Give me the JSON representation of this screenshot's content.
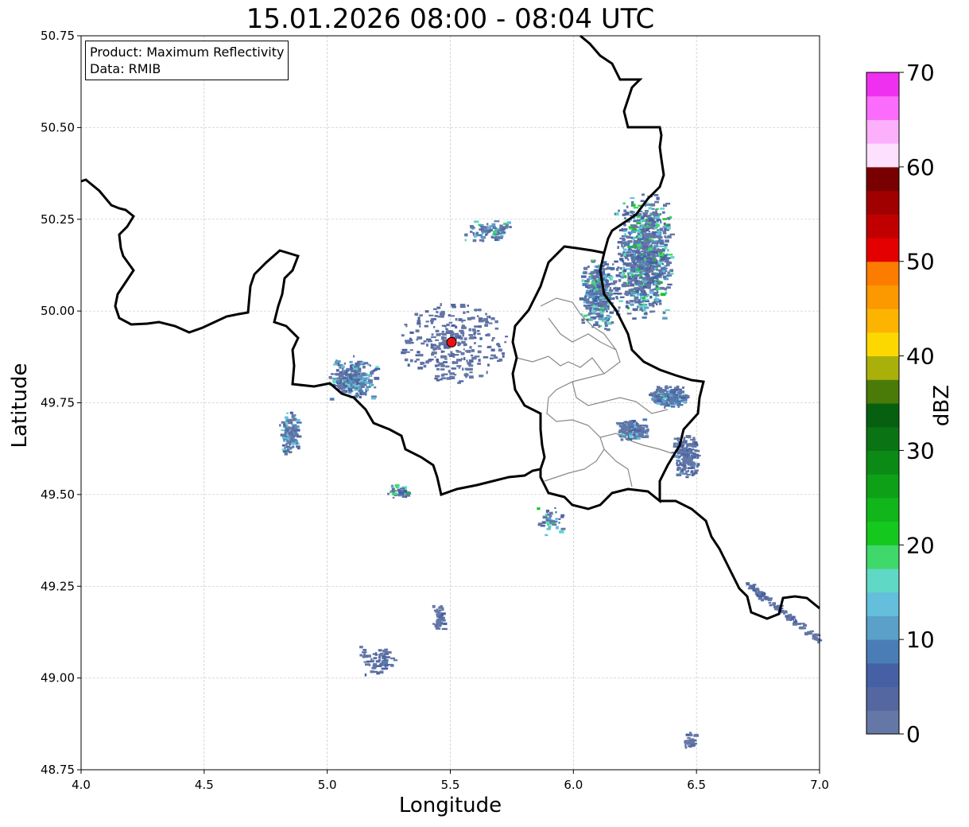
{
  "title": "15.01.2026 08:00 - 08:04 UTC",
  "info": {
    "product": "Product: Maximum Reflectivity",
    "data": "Data: RMIB"
  },
  "xlabel": "Longitude",
  "ylabel": "Latitude",
  "colorbar": {
    "label": "dBZ",
    "min": 0,
    "max": 70,
    "step": 2.5,
    "ticks": [
      "0",
      "10",
      "20",
      "30",
      "40",
      "50",
      "60",
      "70"
    ],
    "colors": [
      "#6477a6",
      "#5567a0",
      "#4560a4",
      "#4a7db5",
      "#5aa0c8",
      "#63bfdc",
      "#60d8c6",
      "#3fd86a",
      "#14c81e",
      "#10b61a",
      "#0ea016",
      "#0c8a16",
      "#0a7414",
      "#066010",
      "#4a7a08",
      "#aab00a",
      "#fcd800",
      "#fcb400",
      "#fc9800",
      "#fc7c00",
      "#e40000",
      "#c00000",
      "#a00000",
      "#780000",
      "#fde0fd",
      "#fcb0fc",
      "#fc6cfc",
      "#f030f0"
    ]
  },
  "axes": {
    "xlim": [
      4.0,
      7.0
    ],
    "ylim": [
      48.75,
      50.75
    ],
    "xticks": [
      "4.0",
      "4.5",
      "5.0",
      "5.5",
      "6.0",
      "6.5",
      "7.0"
    ],
    "yticks": [
      "48.75",
      "49.00",
      "49.25",
      "49.50",
      "49.75",
      "50.00",
      "50.25",
      "50.50",
      "50.75"
    ]
  },
  "radar_site": {
    "lon": 5.505,
    "lat": 49.915,
    "color": "#ee1111"
  },
  "echo_clusters": [
    {
      "lon": 6.28,
      "lat": 50.15,
      "dlon": 0.12,
      "dlat": 0.18,
      "n": 900,
      "max": 22
    },
    {
      "lon": 6.1,
      "lat": 50.05,
      "dlon": 0.08,
      "dlat": 0.1,
      "n": 350,
      "max": 20
    },
    {
      "lon": 6.38,
      "lat": 49.77,
      "dlon": 0.08,
      "dlat": 0.03,
      "n": 220,
      "max": 18
    },
    {
      "lon": 6.24,
      "lat": 49.68,
      "dlon": 0.07,
      "dlat": 0.03,
      "n": 160,
      "max": 16
    },
    {
      "lon": 6.45,
      "lat": 49.61,
      "dlon": 0.06,
      "dlat": 0.06,
      "n": 160,
      "max": 12
    },
    {
      "lon": 5.1,
      "lat": 49.82,
      "dlon": 0.1,
      "dlat": 0.06,
      "n": 260,
      "max": 18
    },
    {
      "lon": 4.84,
      "lat": 49.67,
      "dlon": 0.04,
      "dlat": 0.06,
      "n": 120,
      "max": 16
    },
    {
      "lon": 5.65,
      "lat": 50.22,
      "dlon": 0.1,
      "dlat": 0.03,
      "n": 90,
      "max": 18
    },
    {
      "lon": 5.29,
      "lat": 49.51,
      "dlon": 0.05,
      "dlat": 0.02,
      "n": 40,
      "max": 22
    },
    {
      "lon": 5.2,
      "lat": 49.05,
      "dlon": 0.08,
      "dlat": 0.04,
      "n": 70,
      "max": 8
    },
    {
      "lon": 5.45,
      "lat": 49.17,
      "dlon": 0.03,
      "dlat": 0.04,
      "n": 40,
      "max": 8
    },
    {
      "lon": 5.9,
      "lat": 49.43,
      "dlon": 0.06,
      "dlat": 0.04,
      "n": 40,
      "max": 22
    },
    {
      "lon": 6.47,
      "lat": 48.83,
      "dlon": 0.03,
      "dlat": 0.03,
      "n": 30,
      "max": 6
    },
    {
      "lon": 6.85,
      "lat": 49.18,
      "dlon": 0.15,
      "dlat": 0.08,
      "n": 120,
      "max": 6,
      "diag": true
    },
    {
      "lon": 5.505,
      "lat": 49.915,
      "dlon": 0.2,
      "dlat": 0.1,
      "n": 300,
      "max": 6,
      "ring": true
    }
  ]
}
